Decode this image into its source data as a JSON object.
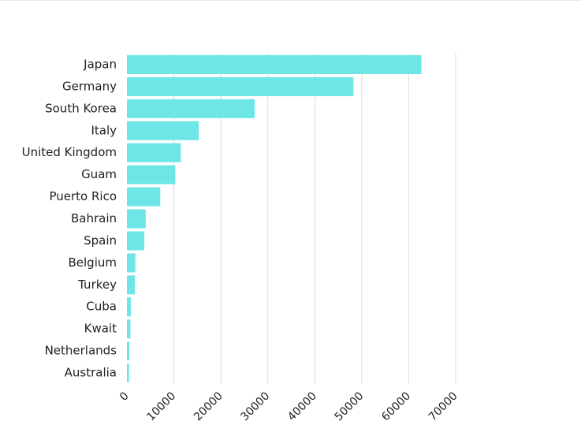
{
  "chart_data": {
    "type": "bar",
    "orientation": "horizontal",
    "categories": [
      "Japan",
      "Germany",
      "South Korea",
      "Italy",
      "United Kingdom",
      "Guam",
      "Puerto Rico",
      "Bahrain",
      "Spain",
      "Belgium",
      "Turkey",
      "Cuba",
      "Kwait",
      "Netherlands",
      "Australia"
    ],
    "values": [
      62690,
      48250,
      27200,
      15300,
      11500,
      10300,
      7100,
      4000,
      3700,
      1800,
      1700,
      850,
      750,
      500,
      450
    ],
    "xticks": [
      "0",
      "10000",
      "20000",
      "30000",
      "40000",
      "50000",
      "60000",
      "70000"
    ],
    "xlim": [
      0,
      70000
    ],
    "title": "",
    "xlabel": "",
    "ylabel": "",
    "grid": "vertical",
    "bar_color": "#6ee6e8",
    "grid_color": "#dddddd"
  }
}
